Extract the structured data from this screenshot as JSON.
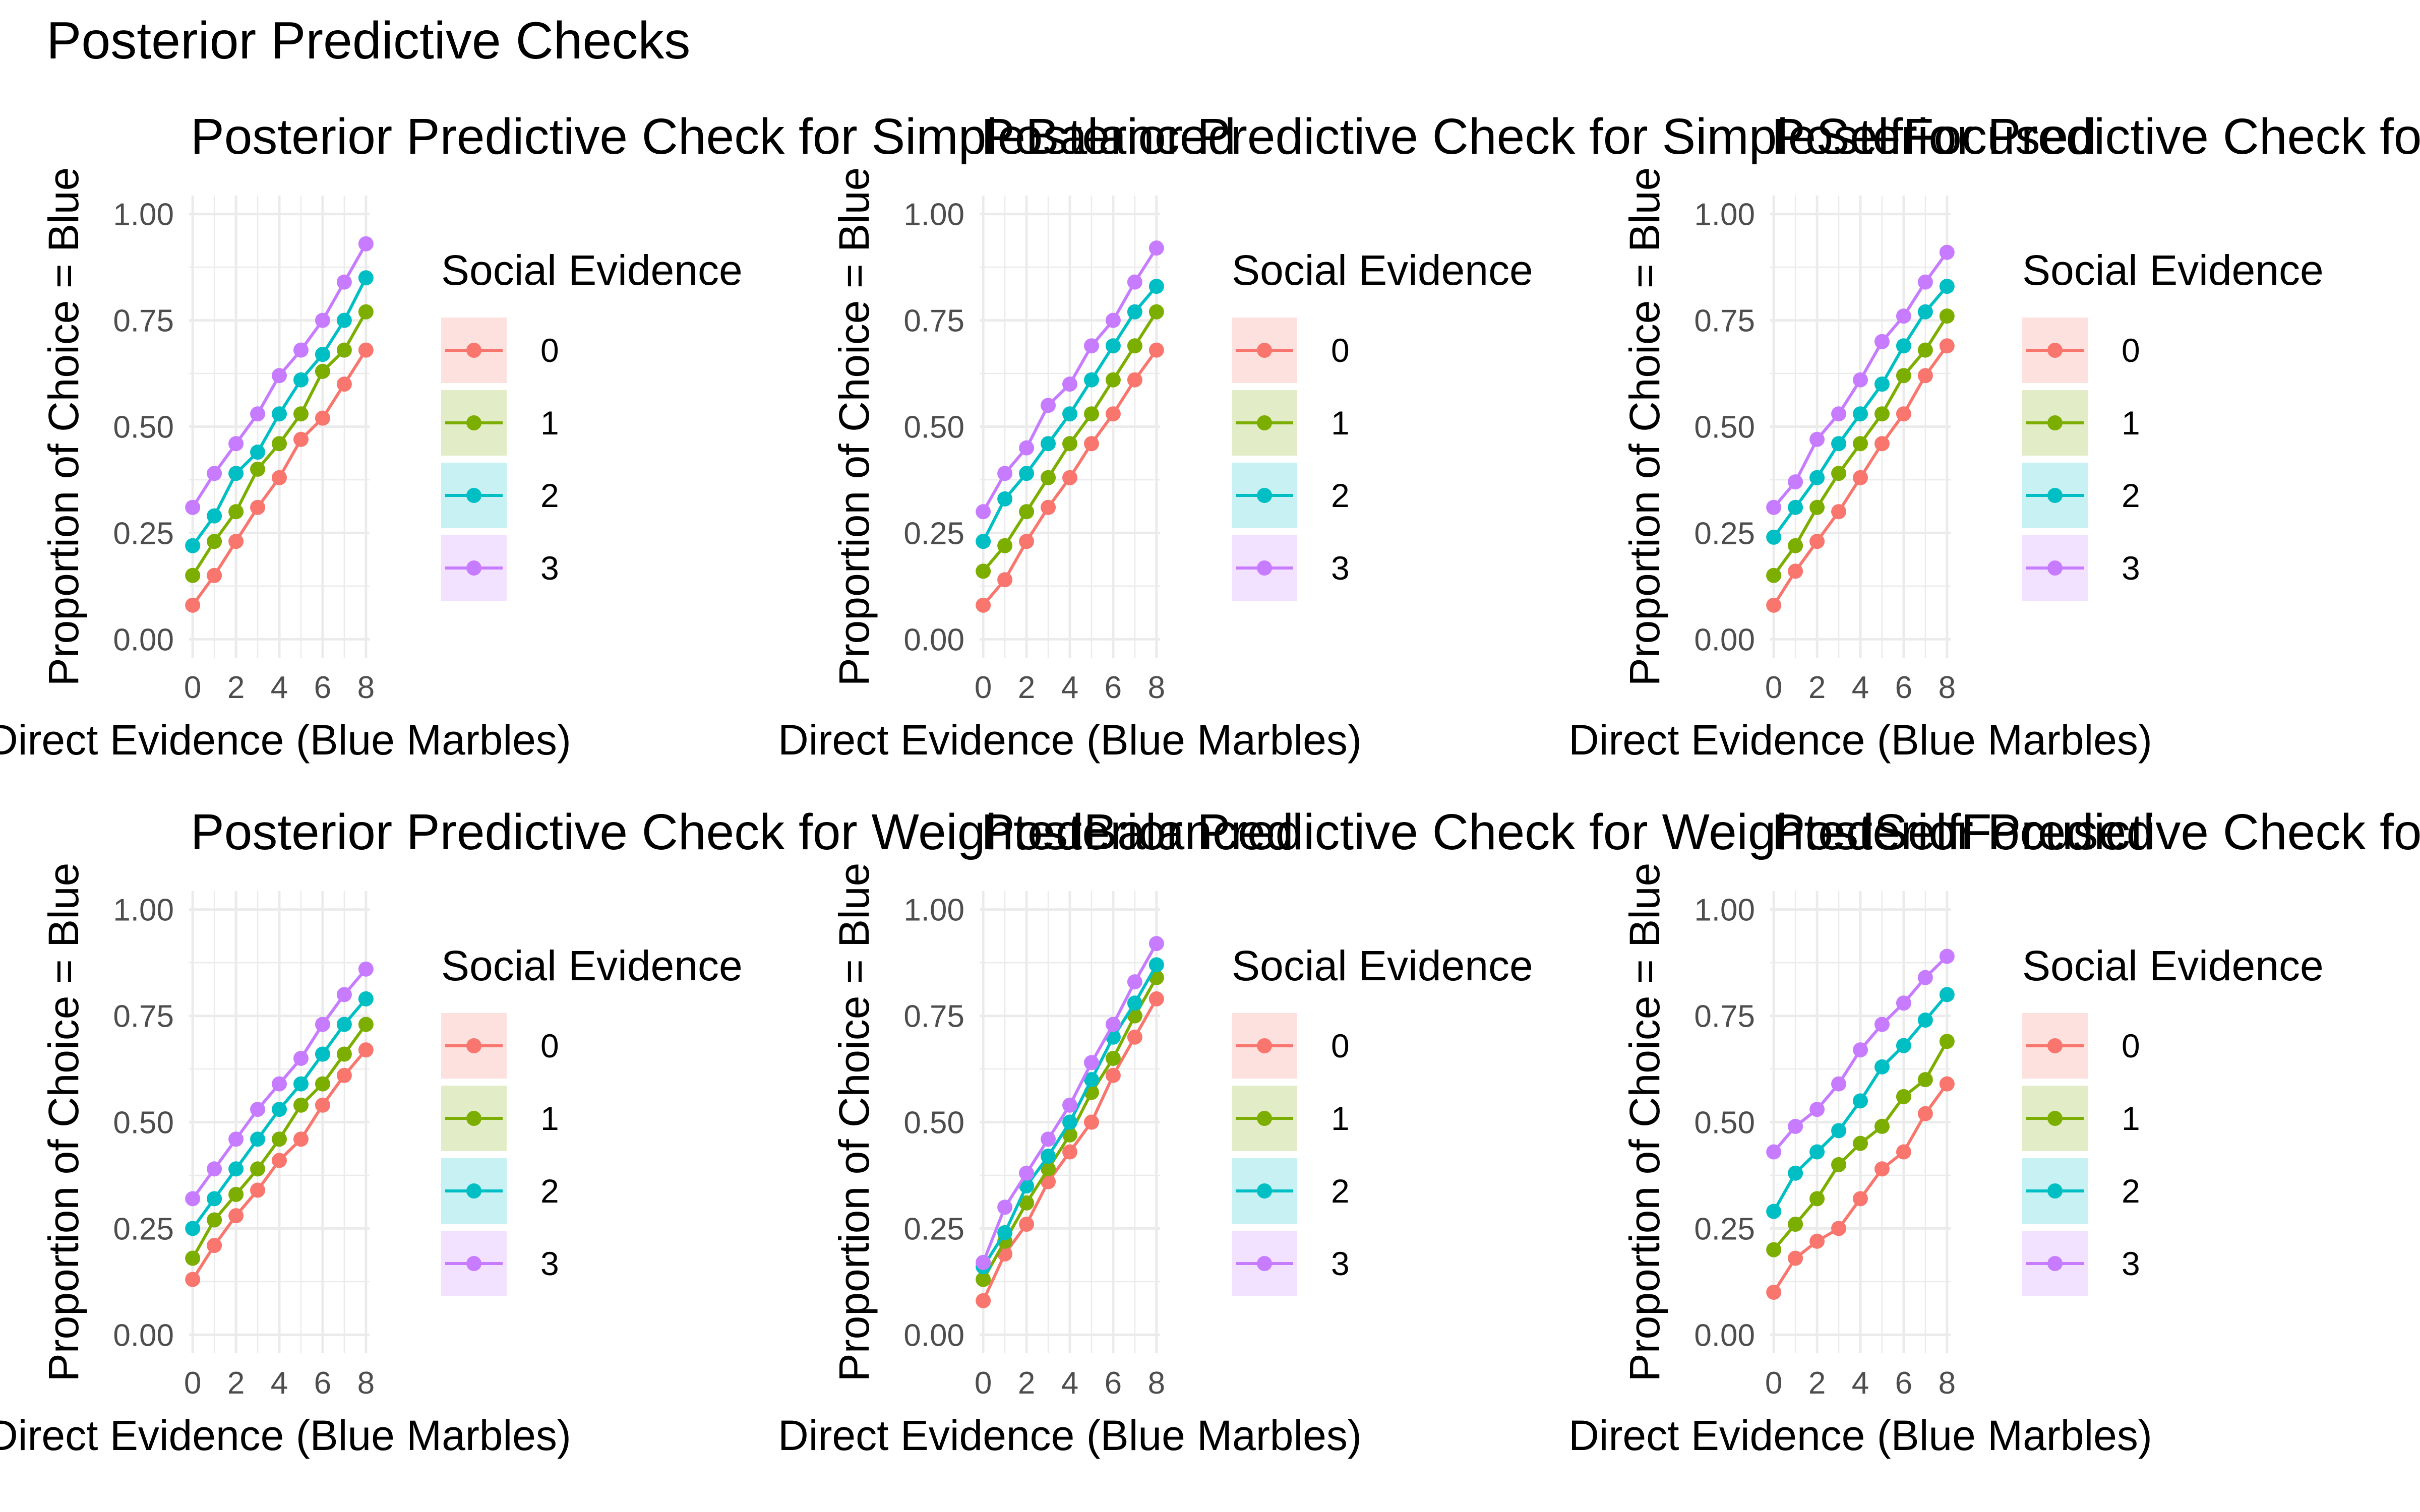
{
  "figure": {
    "title": "Posterior Predictive Checks"
  },
  "theme": {
    "grid_color": "#EBEBEB",
    "text_color": "#000000",
    "tick_color": "#4D4D4D",
    "series_colors": [
      "#F8766D",
      "#7CAE00",
      "#00BFC4",
      "#C77CFF"
    ]
  },
  "chart_data": [
    {
      "type": "line",
      "title": "Posterior Predictive Check for SimpleBalanced",
      "xlabel": "Direct Evidence (Blue Marbles)",
      "ylabel": "Proportion of Choice = Blue",
      "xlim": [
        0,
        8
      ],
      "ylim": [
        0,
        1
      ],
      "x_ticks": [
        0,
        2,
        4,
        6,
        8
      ],
      "y_ticks": [
        0,
        0.25,
        0.5,
        0.75,
        1
      ],
      "x_tick_labels": [
        "0",
        "2",
        "4",
        "6",
        "8"
      ],
      "y_tick_labels": [
        "0.00",
        "0.25",
        "0.50",
        "0.75",
        "1.00"
      ],
      "grid": true,
      "legend": {
        "title": "Social Evidence",
        "position": "right"
      },
      "x": [
        0,
        1,
        2,
        3,
        4,
        5,
        6,
        7,
        8
      ],
      "series": [
        {
          "name": "0",
          "values": [
            0.08,
            0.15,
            0.23,
            0.31,
            0.38,
            0.47,
            0.52,
            0.6,
            0.68
          ]
        },
        {
          "name": "1",
          "values": [
            0.15,
            0.23,
            0.3,
            0.4,
            0.46,
            0.53,
            0.63,
            0.68,
            0.77
          ]
        },
        {
          "name": "2",
          "values": [
            0.22,
            0.29,
            0.39,
            0.44,
            0.53,
            0.61,
            0.67,
            0.75,
            0.85
          ]
        },
        {
          "name": "3",
          "values": [
            0.31,
            0.39,
            0.46,
            0.53,
            0.62,
            0.68,
            0.75,
            0.84,
            0.93
          ]
        }
      ]
    },
    {
      "type": "line",
      "title": "Posterior Predictive Check for SimpleSelfFocused",
      "xlabel": "Direct Evidence (Blue Marbles)",
      "ylabel": "Proportion of Choice = Blue",
      "xlim": [
        0,
        8
      ],
      "ylim": [
        0,
        1
      ],
      "x_ticks": [
        0,
        2,
        4,
        6,
        8
      ],
      "y_ticks": [
        0,
        0.25,
        0.5,
        0.75,
        1
      ],
      "x_tick_labels": [
        "0",
        "2",
        "4",
        "6",
        "8"
      ],
      "y_tick_labels": [
        "0.00",
        "0.25",
        "0.50",
        "0.75",
        "1.00"
      ],
      "grid": true,
      "legend": {
        "title": "Social Evidence",
        "position": "right"
      },
      "x": [
        0,
        1,
        2,
        3,
        4,
        5,
        6,
        7,
        8
      ],
      "series": [
        {
          "name": "0",
          "values": [
            0.08,
            0.14,
            0.23,
            0.31,
            0.38,
            0.46,
            0.53,
            0.61,
            0.68
          ]
        },
        {
          "name": "1",
          "values": [
            0.16,
            0.22,
            0.3,
            0.38,
            0.46,
            0.53,
            0.61,
            0.69,
            0.77
          ]
        },
        {
          "name": "2",
          "values": [
            0.23,
            0.33,
            0.39,
            0.46,
            0.53,
            0.61,
            0.69,
            0.77,
            0.83
          ]
        },
        {
          "name": "3",
          "values": [
            0.3,
            0.39,
            0.45,
            0.55,
            0.6,
            0.69,
            0.75,
            0.84,
            0.92
          ]
        }
      ]
    },
    {
      "type": "line",
      "title": "Posterior Predictive Check for SimpleSocialFocused",
      "xlabel": "Direct Evidence (Blue Marbles)",
      "ylabel": "Proportion of Choice = Blue",
      "xlim": [
        0,
        8
      ],
      "ylim": [
        0,
        1
      ],
      "x_ticks": [
        0,
        2,
        4,
        6,
        8
      ],
      "y_ticks": [
        0,
        0.25,
        0.5,
        0.75,
        1
      ],
      "x_tick_labels": [
        "0",
        "2",
        "4",
        "6",
        "8"
      ],
      "y_tick_labels": [
        "0.00",
        "0.25",
        "0.50",
        "0.75",
        "1.00"
      ],
      "grid": true,
      "legend": {
        "title": "Social Evidence",
        "position": "right"
      },
      "x": [
        0,
        1,
        2,
        3,
        4,
        5,
        6,
        7,
        8
      ],
      "series": [
        {
          "name": "0",
          "values": [
            0.08,
            0.16,
            0.23,
            0.3,
            0.38,
            0.46,
            0.53,
            0.62,
            0.69
          ]
        },
        {
          "name": "1",
          "values": [
            0.15,
            0.22,
            0.31,
            0.39,
            0.46,
            0.53,
            0.62,
            0.68,
            0.76
          ]
        },
        {
          "name": "2",
          "values": [
            0.24,
            0.31,
            0.38,
            0.46,
            0.53,
            0.6,
            0.69,
            0.77,
            0.83
          ]
        },
        {
          "name": "3",
          "values": [
            0.31,
            0.37,
            0.47,
            0.53,
            0.61,
            0.7,
            0.76,
            0.84,
            0.91
          ]
        }
      ]
    },
    {
      "type": "line",
      "title": "Posterior Predictive Check for WeightedBalanced",
      "xlabel": "Direct Evidence (Blue Marbles)",
      "ylabel": "Proportion of Choice = Blue",
      "xlim": [
        0,
        8
      ],
      "ylim": [
        0,
        1
      ],
      "x_ticks": [
        0,
        2,
        4,
        6,
        8
      ],
      "y_ticks": [
        0,
        0.25,
        0.5,
        0.75,
        1
      ],
      "x_tick_labels": [
        "0",
        "2",
        "4",
        "6",
        "8"
      ],
      "y_tick_labels": [
        "0.00",
        "0.25",
        "0.50",
        "0.75",
        "1.00"
      ],
      "grid": true,
      "legend": {
        "title": "Social Evidence",
        "position": "right"
      },
      "x": [
        0,
        1,
        2,
        3,
        4,
        5,
        6,
        7,
        8
      ],
      "series": [
        {
          "name": "0",
          "values": [
            0.13,
            0.21,
            0.28,
            0.34,
            0.41,
            0.46,
            0.54,
            0.61,
            0.67
          ]
        },
        {
          "name": "1",
          "values": [
            0.18,
            0.27,
            0.33,
            0.39,
            0.46,
            0.54,
            0.59,
            0.66,
            0.73
          ]
        },
        {
          "name": "2",
          "values": [
            0.25,
            0.32,
            0.39,
            0.46,
            0.53,
            0.59,
            0.66,
            0.73,
            0.79
          ]
        },
        {
          "name": "3",
          "values": [
            0.32,
            0.39,
            0.46,
            0.53,
            0.59,
            0.65,
            0.73,
            0.8,
            0.86
          ]
        }
      ]
    },
    {
      "type": "line",
      "title": "Posterior Predictive Check for WeightedSelfFocused",
      "xlabel": "Direct Evidence (Blue Marbles)",
      "ylabel": "Proportion of Choice = Blue",
      "xlim": [
        0,
        8
      ],
      "ylim": [
        0,
        1
      ],
      "x_ticks": [
        0,
        2,
        4,
        6,
        8
      ],
      "y_ticks": [
        0,
        0.25,
        0.5,
        0.75,
        1
      ],
      "x_tick_labels": [
        "0",
        "2",
        "4",
        "6",
        "8"
      ],
      "y_tick_labels": [
        "0.00",
        "0.25",
        "0.50",
        "0.75",
        "1.00"
      ],
      "grid": true,
      "legend": {
        "title": "Social Evidence",
        "position": "right"
      },
      "x": [
        0,
        1,
        2,
        3,
        4,
        5,
        6,
        7,
        8
      ],
      "series": [
        {
          "name": "0",
          "values": [
            0.08,
            0.19,
            0.26,
            0.36,
            0.43,
            0.5,
            0.61,
            0.7,
            0.79
          ]
        },
        {
          "name": "1",
          "values": [
            0.13,
            0.22,
            0.31,
            0.39,
            0.47,
            0.57,
            0.65,
            0.75,
            0.84
          ]
        },
        {
          "name": "2",
          "values": [
            0.16,
            0.24,
            0.35,
            0.42,
            0.5,
            0.6,
            0.7,
            0.78,
            0.87
          ]
        },
        {
          "name": "3",
          "values": [
            0.17,
            0.3,
            0.38,
            0.46,
            0.54,
            0.64,
            0.73,
            0.83,
            0.92
          ]
        }
      ]
    },
    {
      "type": "line",
      "title": "Posterior Predictive Check for WeightedSocialFocused",
      "xlabel": "Direct Evidence (Blue Marbles)",
      "ylabel": "Proportion of Choice = Blue",
      "xlim": [
        0,
        8
      ],
      "ylim": [
        0,
        1
      ],
      "x_ticks": [
        0,
        2,
        4,
        6,
        8
      ],
      "y_ticks": [
        0,
        0.25,
        0.5,
        0.75,
        1
      ],
      "x_tick_labels": [
        "0",
        "2",
        "4",
        "6",
        "8"
      ],
      "y_tick_labels": [
        "0.00",
        "0.25",
        "0.50",
        "0.75",
        "1.00"
      ],
      "grid": true,
      "legend": {
        "title": "Social Evidence",
        "position": "right"
      },
      "x": [
        0,
        1,
        2,
        3,
        4,
        5,
        6,
        7,
        8
      ],
      "series": [
        {
          "name": "0",
          "values": [
            0.1,
            0.18,
            0.22,
            0.25,
            0.32,
            0.39,
            0.43,
            0.52,
            0.59
          ]
        },
        {
          "name": "1",
          "values": [
            0.2,
            0.26,
            0.32,
            0.4,
            0.45,
            0.49,
            0.56,
            0.6,
            0.69
          ]
        },
        {
          "name": "2",
          "values": [
            0.29,
            0.38,
            0.43,
            0.48,
            0.55,
            0.63,
            0.68,
            0.74,
            0.8
          ]
        },
        {
          "name": "3",
          "values": [
            0.43,
            0.49,
            0.53,
            0.59,
            0.67,
            0.73,
            0.78,
            0.84,
            0.89
          ]
        }
      ]
    }
  ]
}
